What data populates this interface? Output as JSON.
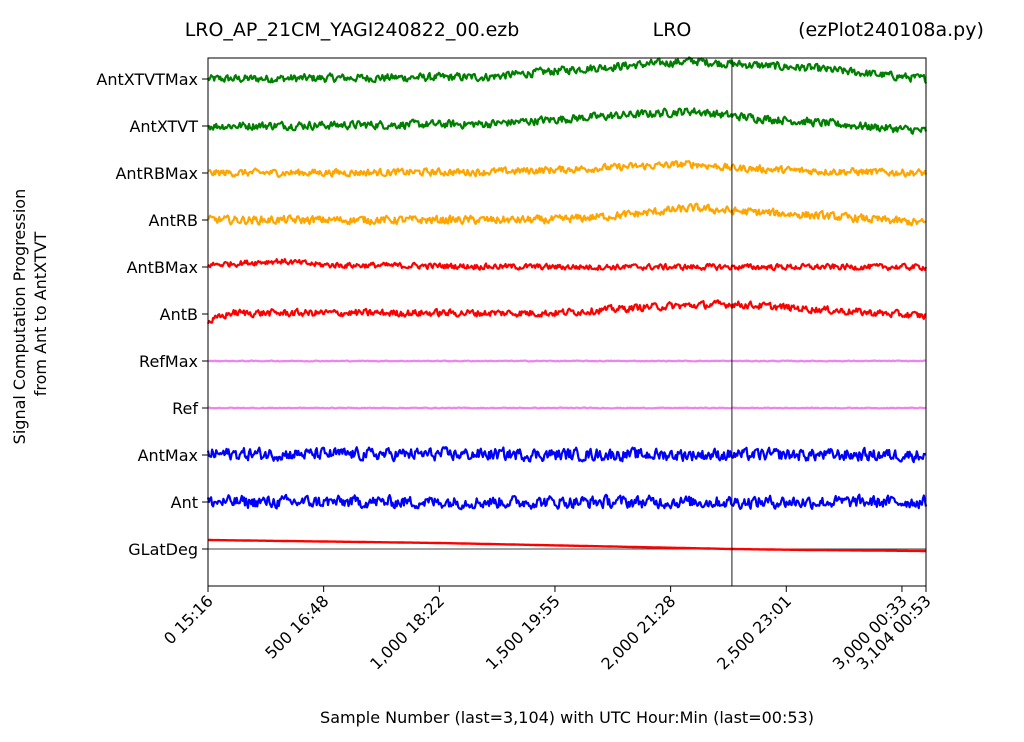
{
  "chart_data": {
    "type": "line",
    "title": {
      "left": "LRO_AP_21CM_YAGI240822_00.ezb",
      "center": "LRO",
      "right": "(ezPlot240108a.py)"
    },
    "xlabel": "Sample Number (last=3,104) with UTC Hour:Min (last=00:53)",
    "ylabel": [
      "Signal Computation Progression",
      "from Ant to AntXTVT"
    ],
    "xlim": [
      0,
      3104
    ],
    "x_ticks": [
      {
        "x": 0,
        "label": "0  15:16"
      },
      {
        "x": 500,
        "label": "500  16:48"
      },
      {
        "x": 1000,
        "label": "1,000  18:22"
      },
      {
        "x": 1500,
        "label": "1,500  19:55"
      },
      {
        "x": 2000,
        "label": "2,000  21:28"
      },
      {
        "x": 2500,
        "label": "2,500  23:01"
      },
      {
        "x": 3000,
        "label": "3,000  00:33"
      },
      {
        "x": 3104,
        "label": "3,104  00:53"
      }
    ],
    "vertical_marker_x": 2265,
    "grid": false,
    "series": [
      {
        "name": "AntXTVTMax",
        "color": "#008000",
        "noise": 0.28,
        "trend": [
          [
            0,
            0
          ],
          [
            1200,
            0.1
          ],
          [
            1600,
            0.5
          ],
          [
            2100,
            0.9
          ],
          [
            2265,
            0.75
          ],
          [
            2600,
            0.55
          ],
          [
            3104,
            0
          ]
        ]
      },
      {
        "name": "AntXTVT",
        "color": "#008000",
        "noise": 0.28,
        "trend": [
          [
            0,
            0
          ],
          [
            1200,
            0.1
          ],
          [
            1600,
            0.4
          ],
          [
            2100,
            0.75
          ],
          [
            2265,
            0.5
          ],
          [
            2600,
            0.2
          ],
          [
            3104,
            -0.25
          ]
        ]
      },
      {
        "name": "AntRBMax",
        "color": "#FFA500",
        "noise": 0.25,
        "trend": [
          [
            0,
            0
          ],
          [
            1200,
            0.05
          ],
          [
            1600,
            0.2
          ],
          [
            2100,
            0.45
          ],
          [
            2265,
            0.25
          ],
          [
            2600,
            0.1
          ],
          [
            3104,
            0
          ]
        ]
      },
      {
        "name": "AntRB",
        "color": "#FFA500",
        "noise": 0.28,
        "trend": [
          [
            0,
            0
          ],
          [
            1500,
            0
          ],
          [
            1800,
            0.25
          ],
          [
            2100,
            0.6
          ],
          [
            2265,
            0.45
          ],
          [
            2600,
            0.25
          ],
          [
            3104,
            -0.15
          ]
        ]
      },
      {
        "name": "AntBMax",
        "color": "#FF0000",
        "noise": 0.2,
        "trend": [
          [
            0,
            0.1
          ],
          [
            300,
            0.3
          ],
          [
            500,
            0.1
          ],
          [
            1500,
            0
          ],
          [
            3104,
            0
          ]
        ]
      },
      {
        "name": "AntB",
        "color": "#FF0000",
        "noise": 0.25,
        "trend": [
          [
            0,
            -0.4
          ],
          [
            100,
            0.05
          ],
          [
            1500,
            0.05
          ],
          [
            1900,
            0.35
          ],
          [
            2265,
            0.5
          ],
          [
            2600,
            0.25
          ],
          [
            3104,
            -0.1
          ]
        ]
      },
      {
        "name": "RefMax",
        "color": "#EE82EE",
        "noise": 0.03,
        "trend": [
          [
            0,
            0
          ],
          [
            3104,
            0
          ]
        ]
      },
      {
        "name": "Ref",
        "color": "#EE82EE",
        "noise": 0.03,
        "trend": [
          [
            0,
            0
          ],
          [
            3104,
            0
          ]
        ]
      },
      {
        "name": "AntMax",
        "color": "#0000FF",
        "noise": 0.42,
        "trend": [
          [
            0,
            0.05
          ],
          [
            3104,
            0
          ]
        ]
      },
      {
        "name": "Ant",
        "color": "#0000FF",
        "noise": 0.42,
        "trend": [
          [
            0,
            0
          ],
          [
            3104,
            0
          ]
        ]
      },
      {
        "name": "GLatDeg",
        "color": "#FF0000",
        "noise": 0,
        "zero_line": true,
        "trend": [
          [
            0,
            0.45
          ],
          [
            1000,
            0.3
          ],
          [
            2265,
            0
          ],
          [
            2600,
            -0.05
          ],
          [
            3104,
            -0.1
          ]
        ]
      }
    ]
  }
}
